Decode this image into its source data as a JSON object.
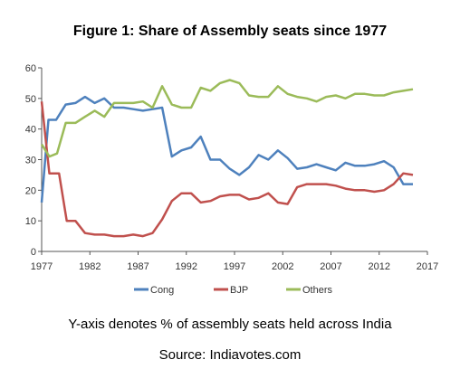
{
  "figure": {
    "title": "Figure 1: Share of Assembly seats since 1977",
    "caption": "Y-axis denotes % of assembly seats held across India",
    "source": "Source: Indiavotes.com"
  },
  "chart_data": {
    "type": "line",
    "title": "Figure 1: Share of Assembly seats since 1977",
    "xlabel": "",
    "ylabel": "",
    "ylim": [
      0,
      60
    ],
    "xlim": [
      1977,
      2017
    ],
    "y_ticks": [
      0,
      10,
      20,
      30,
      40,
      50,
      60
    ],
    "x_ticks": [
      1977,
      1982,
      1987,
      1992,
      1997,
      2002,
      2007,
      2012,
      2017
    ],
    "grid": false,
    "legend_position": "bottom",
    "series": [
      {
        "name": "Cong",
        "color": "#4e81bd",
        "points": [
          [
            1977,
            16
          ],
          [
            1977.7,
            43
          ],
          [
            1978.5,
            43
          ],
          [
            1979.5,
            48
          ],
          [
            1980.5,
            48.5
          ],
          [
            1981.5,
            50.5
          ],
          [
            1982.5,
            48.5
          ],
          [
            1983.5,
            50
          ],
          [
            1984.5,
            47
          ],
          [
            1985.5,
            47
          ],
          [
            1986.5,
            46.5
          ],
          [
            1987.5,
            46
          ],
          [
            1988.5,
            46.5
          ],
          [
            1989.5,
            47
          ],
          [
            1990.5,
            31
          ],
          [
            1991.5,
            33
          ],
          [
            1992.5,
            34
          ],
          [
            1993.5,
            37.5
          ],
          [
            1994.5,
            30
          ],
          [
            1995.5,
            30
          ],
          [
            1996.5,
            27
          ],
          [
            1997.5,
            25
          ],
          [
            1998.5,
            27.5
          ],
          [
            1999.5,
            31.5
          ],
          [
            2000.5,
            30
          ],
          [
            2001.5,
            33
          ],
          [
            2002.5,
            30.5
          ],
          [
            2003.5,
            27
          ],
          [
            2004.5,
            27.5
          ],
          [
            2005.5,
            28.5
          ],
          [
            2006.5,
            27.5
          ],
          [
            2007.5,
            26.5
          ],
          [
            2008.5,
            29
          ],
          [
            2009.5,
            28
          ],
          [
            2010.5,
            28
          ],
          [
            2011.5,
            28.5
          ],
          [
            2012.5,
            29.5
          ],
          [
            2013.5,
            27.5
          ],
          [
            2014.5,
            22
          ],
          [
            2015.5,
            22
          ]
        ]
      },
      {
        "name": "BJP",
        "color": "#c0504d",
        "points": [
          [
            1977,
            49
          ],
          [
            1977.8,
            25.5
          ],
          [
            1978.8,
            25.5
          ],
          [
            1979.6,
            10
          ],
          [
            1980.5,
            10
          ],
          [
            1981.5,
            6
          ],
          [
            1982.5,
            5.5
          ],
          [
            1983.5,
            5.5
          ],
          [
            1984.5,
            5
          ],
          [
            1985.5,
            5
          ],
          [
            1986.5,
            5.5
          ],
          [
            1987.5,
            5
          ],
          [
            1988.5,
            6
          ],
          [
            1989.5,
            10.5
          ],
          [
            1990.5,
            16.5
          ],
          [
            1991.5,
            19
          ],
          [
            1992.5,
            19
          ],
          [
            1993.5,
            16
          ],
          [
            1994.5,
            16.5
          ],
          [
            1995.5,
            18
          ],
          [
            1996.5,
            18.5
          ],
          [
            1997.5,
            18.5
          ],
          [
            1998.5,
            17
          ],
          [
            1999.5,
            17.5
          ],
          [
            2000.5,
            19
          ],
          [
            2001.5,
            16
          ],
          [
            2002.5,
            15.5
          ],
          [
            2003.5,
            21
          ],
          [
            2004.5,
            22
          ],
          [
            2005.5,
            22
          ],
          [
            2006.5,
            22
          ],
          [
            2007.5,
            21.5
          ],
          [
            2008.5,
            20.5
          ],
          [
            2009.5,
            20
          ],
          [
            2010.5,
            20
          ],
          [
            2011.5,
            19.5
          ],
          [
            2012.5,
            20
          ],
          [
            2013.5,
            22
          ],
          [
            2014.5,
            25.5
          ],
          [
            2015.5,
            25
          ]
        ]
      },
      {
        "name": "Others",
        "color": "#9bbb59",
        "points": [
          [
            1977,
            35
          ],
          [
            1977.8,
            31
          ],
          [
            1978.6,
            32
          ],
          [
            1979.5,
            42
          ],
          [
            1980.5,
            42
          ],
          [
            1981.5,
            44
          ],
          [
            1982.5,
            46
          ],
          [
            1983.5,
            44
          ],
          [
            1984.5,
            48.5
          ],
          [
            1985.5,
            48.5
          ],
          [
            1986.5,
            48.5
          ],
          [
            1987.5,
            49
          ],
          [
            1988.5,
            47
          ],
          [
            1989.5,
            54
          ],
          [
            1990.5,
            48
          ],
          [
            1991.5,
            47
          ],
          [
            1992.5,
            47
          ],
          [
            1993.5,
            53.5
          ],
          [
            1994.5,
            52.5
          ],
          [
            1995.5,
            55
          ],
          [
            1996.5,
            56
          ],
          [
            1997.5,
            55
          ],
          [
            1998.5,
            51
          ],
          [
            1999.5,
            50.5
          ],
          [
            2000.5,
            50.5
          ],
          [
            2001.5,
            54
          ],
          [
            2002.5,
            51.5
          ],
          [
            2003.5,
            50.5
          ],
          [
            2004.5,
            50
          ],
          [
            2005.5,
            49
          ],
          [
            2006.5,
            50.5
          ],
          [
            2007.5,
            51
          ],
          [
            2008.5,
            50
          ],
          [
            2009.5,
            51.5
          ],
          [
            2010.5,
            51.5
          ],
          [
            2011.5,
            51
          ],
          [
            2012.5,
            51
          ],
          [
            2013.5,
            52
          ],
          [
            2014.5,
            52.5
          ],
          [
            2015.5,
            53
          ]
        ]
      }
    ]
  }
}
